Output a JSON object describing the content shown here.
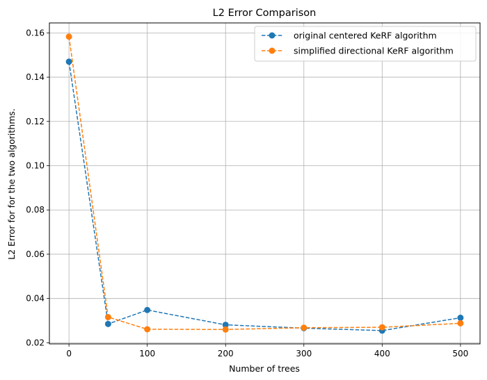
{
  "chart_data": {
    "type": "line",
    "title": "L2 Error Comparison",
    "xlabel": "Number of trees",
    "ylabel": "L2 Error for for the two algorithms.",
    "x": [
      0,
      50,
      100,
      200,
      300,
      400,
      500
    ],
    "xlim": [
      -25,
      525
    ],
    "ylim": [
      0.0195,
      0.1645
    ],
    "xticks": [
      0,
      100,
      200,
      300,
      400,
      500
    ],
    "xtick_labels": [
      "0",
      "100",
      "200",
      "300",
      "400",
      "500"
    ],
    "yticks": [
      0.02,
      0.04,
      0.06,
      0.08,
      0.1,
      0.12,
      0.14,
      0.16
    ],
    "ytick_labels": [
      "0.02",
      "0.04",
      "0.06",
      "0.08",
      "0.10",
      "0.12",
      "0.14",
      "0.16"
    ],
    "grid": true,
    "legend_position": "top-right",
    "series": [
      {
        "name": "original centered KeRF algorithm",
        "color": "#1f77b4",
        "linestyle": "dashed",
        "marker": "circle",
        "values": [
          0.147,
          0.0285,
          0.0348,
          0.0281,
          0.0266,
          0.0255,
          0.0313
        ]
      },
      {
        "name": "simplified directional KeRF algorithm",
        "color": "#ff7f0e",
        "linestyle": "dashed",
        "marker": "circle",
        "values": [
          0.1583,
          0.0316,
          0.0261,
          0.026,
          0.0268,
          0.027,
          0.0288
        ]
      }
    ]
  }
}
